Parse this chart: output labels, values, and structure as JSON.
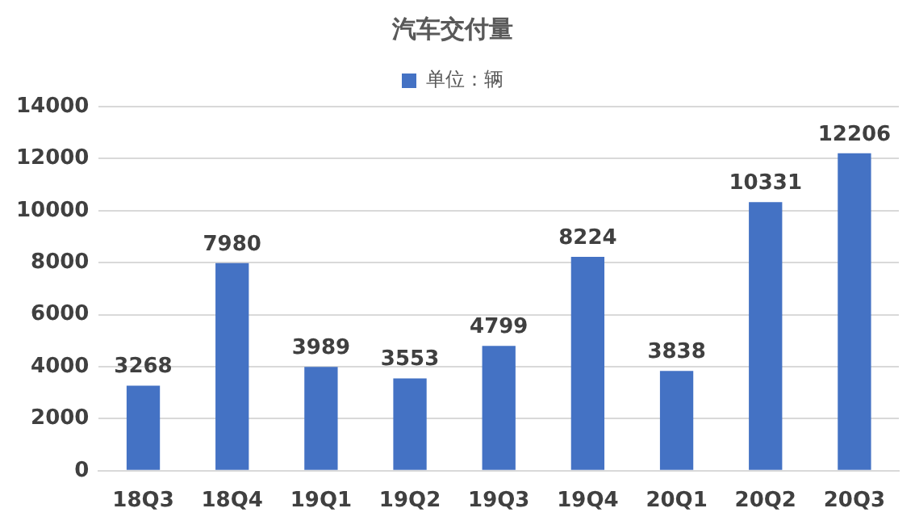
{
  "chart_data": {
    "type": "bar",
    "title": "汽车交付量",
    "categories": [
      "18Q3",
      "18Q4",
      "19Q1",
      "19Q2",
      "19Q3",
      "19Q4",
      "20Q1",
      "20Q2",
      "20Q3"
    ],
    "series": [
      {
        "name": "单位：辆",
        "color": "#4472c4",
        "values": [
          3268,
          7980,
          3989,
          3553,
          4799,
          8224,
          3838,
          10331,
          12206
        ]
      }
    ],
    "ylim": [
      0,
      14000
    ],
    "yticks": [
      0,
      2000,
      4000,
      6000,
      8000,
      10000,
      12000,
      14000
    ],
    "grid": "y",
    "legend": "top",
    "data_labels": true
  }
}
